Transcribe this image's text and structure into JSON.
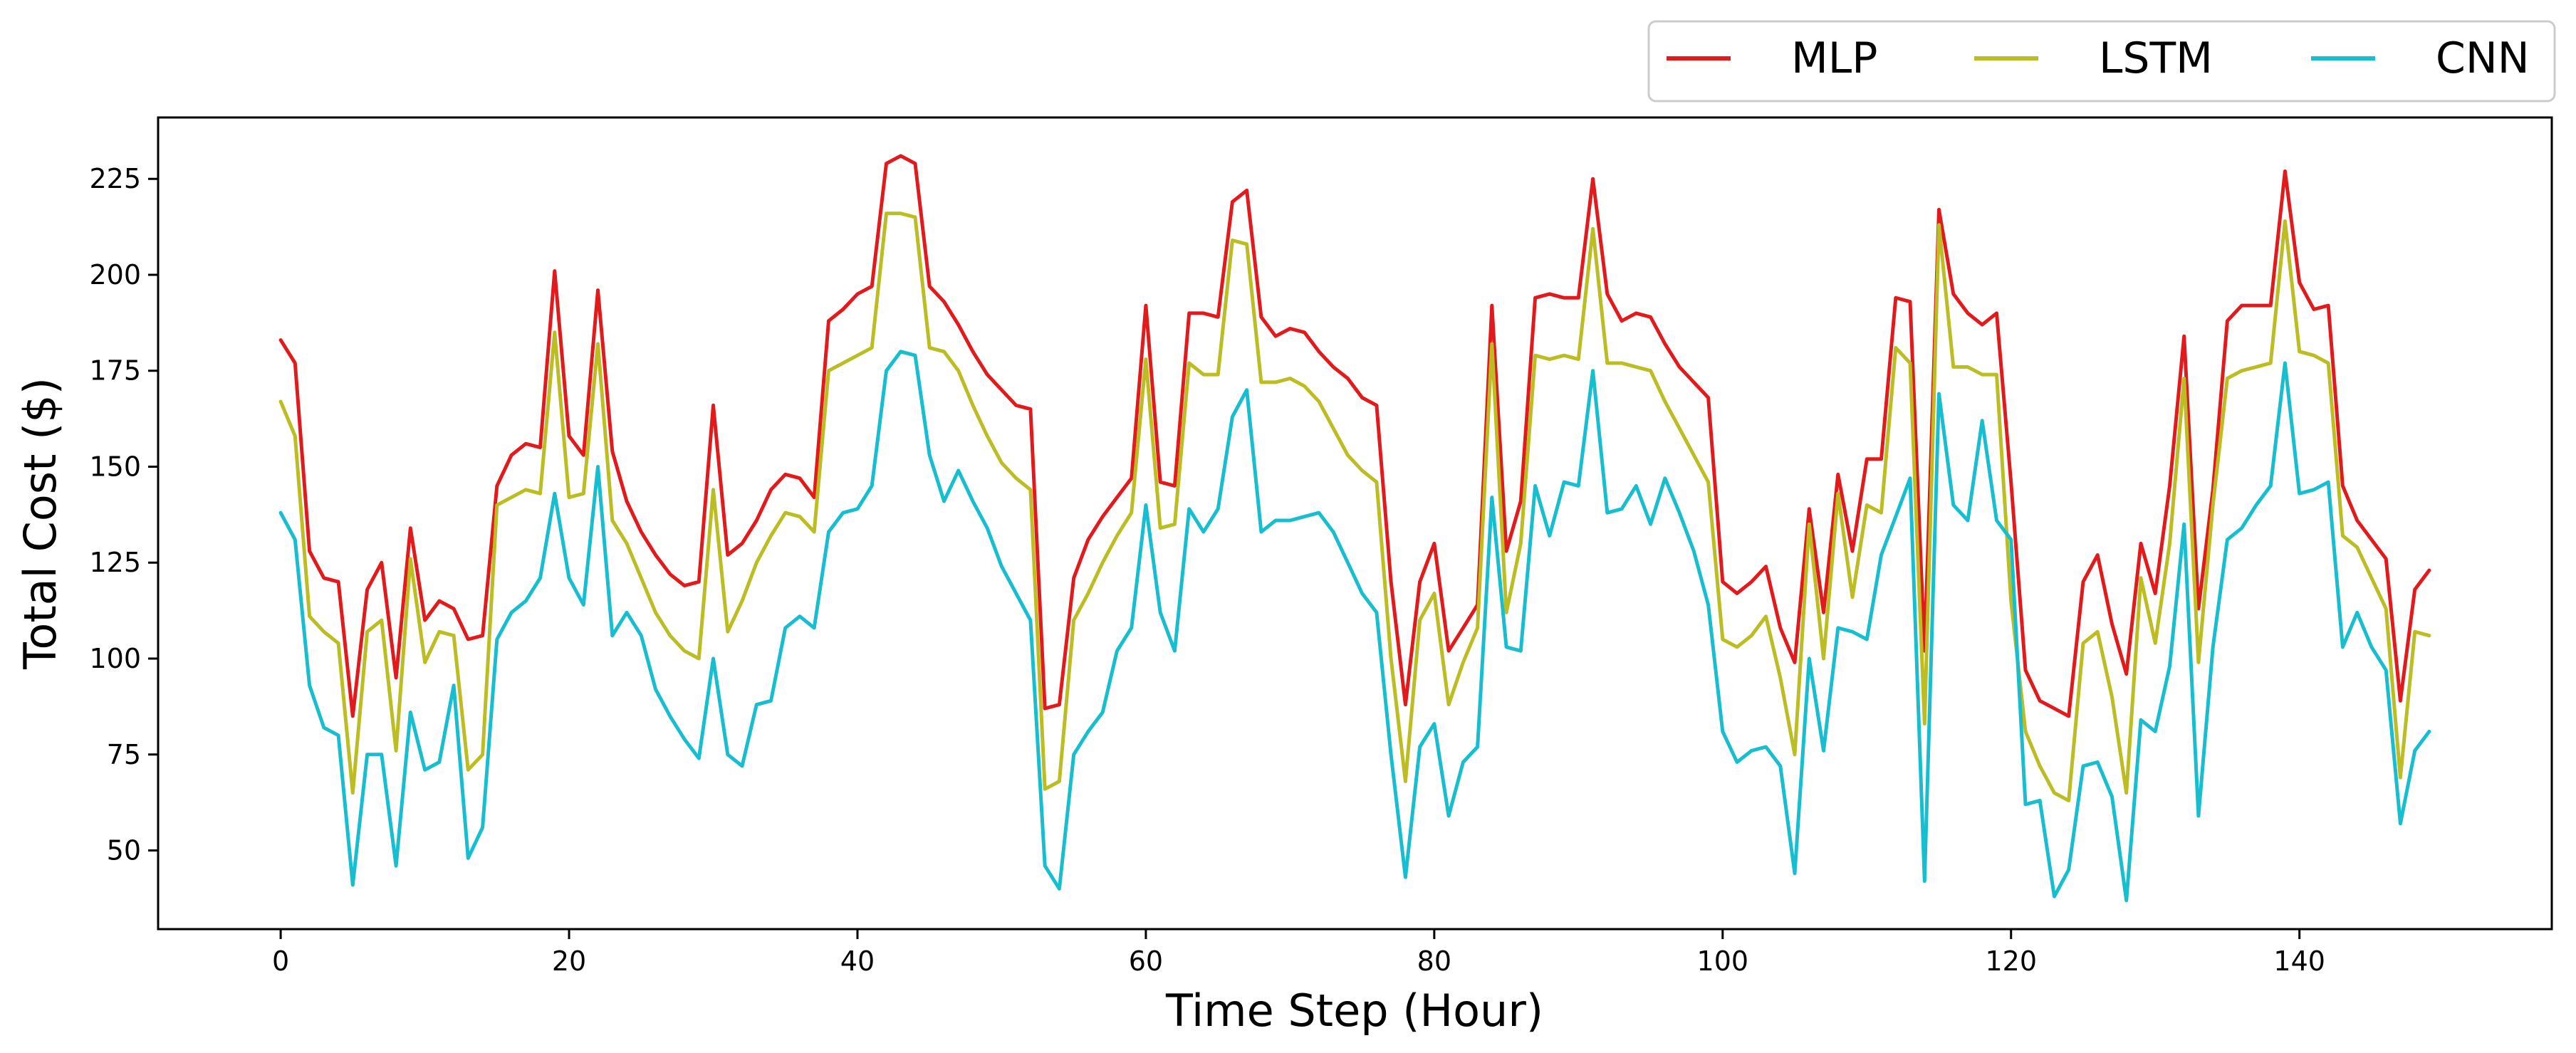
{
  "chart_data": {
    "type": "line",
    "xlabel": "Time Step (Hour)",
    "ylabel": "Total Cost ($)",
    "xlim": [
      -8.5,
      157.5
    ],
    "ylim": [
      29.5,
      241
    ],
    "xticks": [
      0,
      20,
      40,
      60,
      80,
      100,
      120,
      140
    ],
    "yticks": [
      50,
      75,
      100,
      125,
      150,
      175,
      200,
      225
    ],
    "legend_position": "top-right",
    "grid": false,
    "x_start": 0,
    "x_step": 1,
    "series": [
      {
        "name": "MLP",
        "color": "#e31a1c",
        "values": [
          183,
          177,
          128,
          121,
          120,
          85,
          118,
          125,
          95,
          134,
          110,
          115,
          113,
          105,
          106,
          145,
          153,
          156,
          155,
          201,
          158,
          153,
          196,
          154,
          141,
          133,
          127,
          122,
          119,
          120,
          166,
          127,
          130,
          136,
          144,
          148,
          147,
          142,
          188,
          191,
          195,
          197,
          229,
          231,
          229,
          197,
          193,
          187,
          180,
          174,
          170,
          166,
          165,
          87,
          88,
          121,
          131,
          137,
          142,
          147,
          192,
          146,
          145,
          190,
          190,
          189,
          219,
          222,
          189,
          184,
          186,
          185,
          180,
          176,
          173,
          168,
          166,
          120,
          88,
          120,
          130,
          102,
          108,
          114,
          192,
          128,
          141,
          194,
          195,
          194,
          194,
          225,
          195,
          188,
          190,
          189,
          182,
          176,
          172,
          168,
          120,
          117,
          120,
          124,
          108,
          99,
          139,
          112,
          148,
          128,
          152,
          152,
          194,
          193,
          102,
          217,
          195,
          190,
          187,
          190,
          146,
          97,
          89,
          87,
          85,
          120,
          127,
          109,
          96,
          130,
          117,
          145,
          184,
          113,
          144,
          188,
          192,
          192,
          192,
          227,
          198,
          191,
          192,
          145,
          136,
          131,
          126,
          89,
          118,
          123
        ]
      },
      {
        "name": "LSTM",
        "color": "#bcbd22",
        "values": [
          167,
          158,
          111,
          107,
          104,
          65,
          107,
          110,
          76,
          126,
          99,
          107,
          106,
          71,
          75,
          140,
          142,
          144,
          143,
          185,
          142,
          143,
          182,
          136,
          130,
          121,
          112,
          106,
          102,
          100,
          144,
          107,
          115,
          125,
          132,
          138,
          137,
          133,
          175,
          177,
          179,
          181,
          216,
          216,
          215,
          181,
          180,
          175,
          166,
          158,
          151,
          147,
          144,
          66,
          68,
          110,
          117,
          125,
          132,
          138,
          178,
          134,
          135,
          177,
          174,
          174,
          209,
          208,
          172,
          172,
          173,
          171,
          167,
          160,
          153,
          149,
          146,
          100,
          68,
          110,
          117,
          88,
          99,
          108,
          182,
          112,
          130,
          179,
          178,
          179,
          178,
          212,
          177,
          177,
          176,
          175,
          167,
          160,
          153,
          146,
          105,
          103,
          106,
          111,
          95,
          75,
          135,
          100,
          143,
          116,
          140,
          138,
          181,
          177,
          83,
          213,
          176,
          176,
          174,
          174,
          115,
          81,
          72,
          65,
          63,
          104,
          107,
          90,
          65,
          121,
          104,
          130,
          173,
          99,
          140,
          173,
          175,
          176,
          177,
          214,
          180,
          179,
          177,
          132,
          129,
          121,
          113,
          69,
          107,
          106
        ]
      },
      {
        "name": "CNN",
        "color": "#17becf",
        "values": [
          138,
          131,
          93,
          82,
          80,
          41,
          75,
          75,
          46,
          86,
          71,
          73,
          93,
          48,
          56,
          105,
          112,
          115,
          121,
          143,
          121,
          114,
          150,
          106,
          112,
          106,
          92,
          85,
          79,
          74,
          100,
          75,
          72,
          88,
          89,
          108,
          111,
          108,
          133,
          138,
          139,
          145,
          175,
          180,
          179,
          153,
          141,
          149,
          141,
          134,
          124,
          117,
          110,
          46,
          40,
          75,
          81,
          86,
          102,
          108,
          140,
          112,
          102,
          139,
          133,
          139,
          163,
          170,
          133,
          136,
          136,
          137,
          138,
          133,
          125,
          117,
          112,
          75,
          43,
          77,
          83,
          59,
          73,
          77,
          142,
          103,
          102,
          145,
          132,
          146,
          145,
          175,
          138,
          139,
          145,
          135,
          147,
          138,
          128,
          114,
          81,
          73,
          76,
          77,
          72,
          44,
          100,
          76,
          108,
          107,
          105,
          127,
          137,
          147,
          42,
          169,
          140,
          136,
          162,
          136,
          131,
          62,
          63,
          38,
          45,
          72,
          73,
          64,
          37,
          84,
          81,
          98,
          135,
          59,
          103,
          131,
          134,
          140,
          145,
          177,
          143,
          144,
          146,
          103,
          112,
          103,
          97,
          57,
          76,
          81
        ]
      }
    ]
  }
}
